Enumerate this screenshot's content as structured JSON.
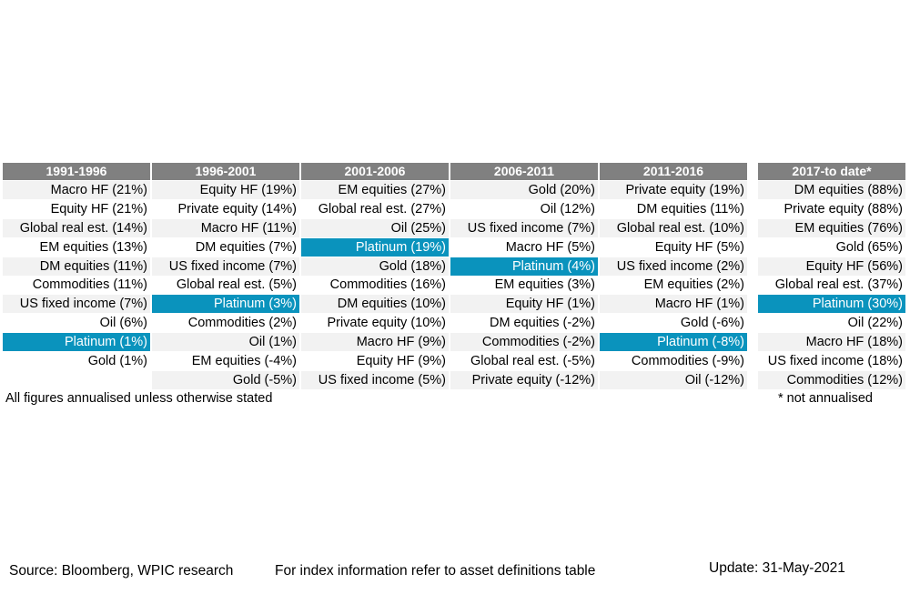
{
  "chart_data": {
    "type": "table",
    "columns": [
      {
        "header": "1991-1996",
        "rows": [
          "Macro HF (21%)",
          "Equity HF (21%)",
          "Global real est. (14%)",
          "EM equities (13%)",
          "DM equities (11%)",
          "Commodities (11%)",
          "US fixed income (7%)",
          "Oil (6%)",
          "Platinum (1%)",
          "Gold (1%)",
          ""
        ]
      },
      {
        "header": "1996-2001",
        "rows": [
          "Equity HF (19%)",
          "Private equity (14%)",
          "Macro HF (11%)",
          "DM equities (7%)",
          "US fixed income (7%)",
          "Global real est. (5%)",
          "Platinum (3%)",
          "Commodities (2%)",
          "Oil (1%)",
          "EM equities (-4%)",
          "Gold (-5%)"
        ]
      },
      {
        "header": "2001-2006",
        "rows": [
          "EM equities (27%)",
          "Global real est. (27%)",
          "Oil (25%)",
          "Platinum (19%)",
          "Gold (18%)",
          "Commodities (16%)",
          "DM equities (10%)",
          "Private equity (10%)",
          "Macro HF (9%)",
          "Equity HF (9%)",
          "US fixed income (5%)"
        ]
      },
      {
        "header": "2006-2011",
        "rows": [
          "Gold (20%)",
          "Oil (12%)",
          "US fixed income (7%)",
          "Macro HF (5%)",
          "Platinum (4%)",
          "EM equities (3%)",
          "Equity HF (1%)",
          "DM equities (-2%)",
          "Commodities (-2%)",
          "Global real est. (-5%)",
          "Private equity (-12%)"
        ]
      },
      {
        "header": "2011-2016",
        "rows": [
          "Private equity (19%)",
          "DM equities (11%)",
          "Global real est. (10%)",
          "Equity HF (5%)",
          "US fixed income (2%)",
          "EM equities (2%)",
          "Macro HF (1%)",
          "Gold (-6%)",
          "Platinum (-8%)",
          "Commodities (-9%)",
          "Oil (-12%)"
        ]
      },
      {
        "header": "2017-to date*",
        "rows": [
          "DM equities (88%)",
          "Private equity (88%)",
          "EM equities (76%)",
          "Gold (65%)",
          "Equity HF (56%)",
          "Global real est. (37%)",
          "Platinum (30%)",
          "Oil (22%)",
          "Macro HF (18%)",
          "US fixed income (18%)",
          "Commodities (12%)"
        ]
      }
    ],
    "highlight": "Platinum",
    "highlight_color": "#0a93bd",
    "header_color": "#808080"
  },
  "notes": {
    "left": "All figures annualised unless otherwise stated",
    "right": "* not annualised"
  },
  "footer": {
    "source": "Source: Bloomberg, WPIC research",
    "index_info": "For index information refer to asset definitions table",
    "update": "Update: 31-May-2021"
  }
}
